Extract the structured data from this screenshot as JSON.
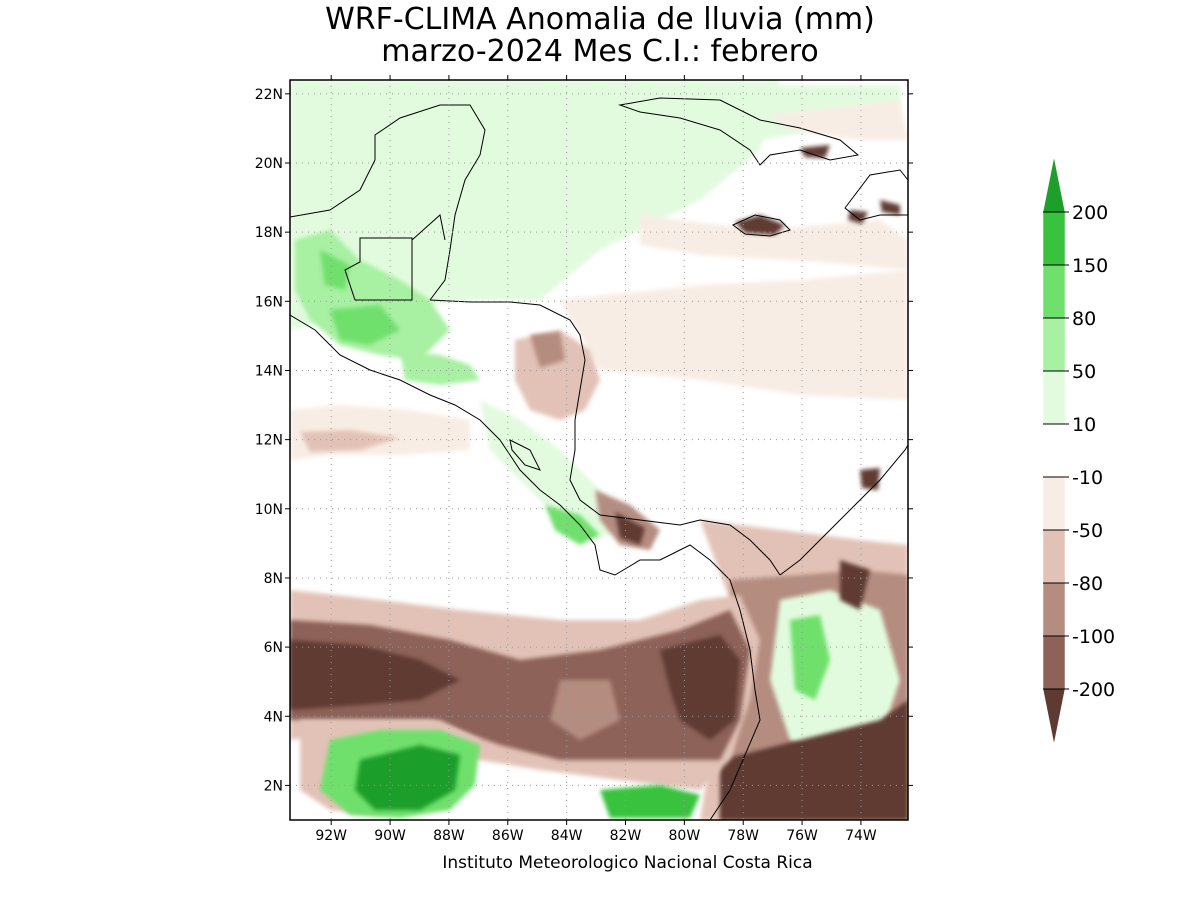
{
  "title_line1": "WRF-CLIMA Anomalia de lluvia (mm)",
  "title_line2": "marzo-2024 Mes C.I.: febrero",
  "credit": "Instituto Meteorologico Nacional Costa Rica",
  "map": {
    "lon_range": [
      -93.4,
      -72.4
    ],
    "lat_range": [
      1.0,
      22.4
    ],
    "lat_ticks": [
      {
        "value": 22,
        "label": "22N"
      },
      {
        "value": 20,
        "label": "20N"
      },
      {
        "value": 18,
        "label": "18N"
      },
      {
        "value": 16,
        "label": "16N"
      },
      {
        "value": 14,
        "label": "14N"
      },
      {
        "value": 12,
        "label": "12N"
      },
      {
        "value": 10,
        "label": "10N"
      },
      {
        "value": 8,
        "label": "8N"
      },
      {
        "value": 6,
        "label": "6N"
      },
      {
        "value": 4,
        "label": "4N"
      },
      {
        "value": 2,
        "label": "2N"
      }
    ],
    "lon_ticks": [
      {
        "value": -92,
        "label": "92W"
      },
      {
        "value": -90,
        "label": "90W"
      },
      {
        "value": -88,
        "label": "88W"
      },
      {
        "value": -86,
        "label": "86W"
      },
      {
        "value": -84,
        "label": "84W"
      },
      {
        "value": -82,
        "label": "82W"
      },
      {
        "value": -80,
        "label": "80W"
      },
      {
        "value": -78,
        "label": "78W"
      },
      {
        "value": -76,
        "label": "76W"
      },
      {
        "value": -74,
        "label": "74W"
      }
    ],
    "grid": "dotted"
  },
  "colorbar": {
    "levels": [
      "200",
      "150",
      "80",
      "50",
      "10",
      "-10",
      "-50",
      "-80",
      "-100",
      "-200"
    ],
    "colors": [
      "#1e9e2a",
      "#38c23e",
      "#6fe06c",
      "#a8f0a2",
      "#e2fbde",
      "#ffffff",
      "#f8ede4",
      "#e2c2b6",
      "#b58c80",
      "#8d6258",
      "#5e3a32"
    ]
  }
}
